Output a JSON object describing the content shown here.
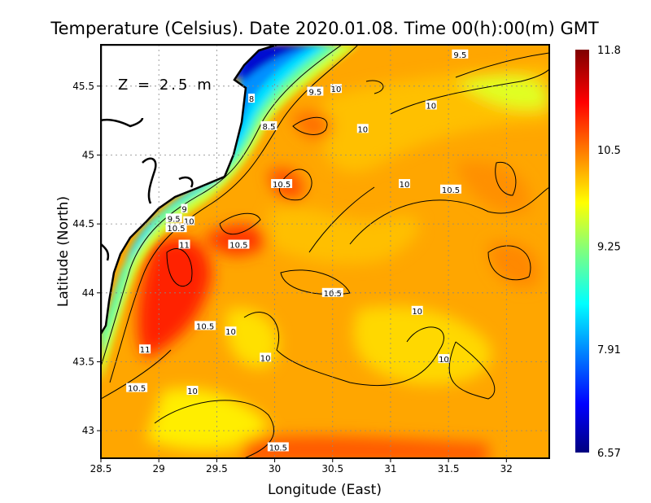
{
  "chart_data": {
    "type": "heatmap",
    "title": "Temperature (Celsius). Date 2020.01.08. Time 00(h):00(m)  GMT",
    "annotation": "Z = 2.5 m",
    "xlabel": "Longitude (East)",
    "ylabel": "Latitude (North)",
    "xlim": [
      28.5,
      32.37
    ],
    "ylim": [
      42.8,
      45.8
    ],
    "xticks": [
      "28.5",
      "29",
      "29.5",
      "30",
      "30.5",
      "31",
      "31.5",
      "32"
    ],
    "xtick_values": [
      28.5,
      29,
      29.5,
      30,
      30.5,
      31,
      31.5,
      32
    ],
    "yticks": [
      "43",
      "43.5",
      "44",
      "44.5",
      "45",
      "45.5"
    ],
    "ytick_values": [
      43,
      43.5,
      44,
      44.5,
      45,
      45.5
    ],
    "grid": true,
    "colorbar": {
      "min": 6.57,
      "max": 11.8,
      "ticks": [
        "11.8",
        "10.5",
        "9.25",
        "7.91",
        "6.57"
      ],
      "tick_values": [
        11.8,
        10.5,
        9.25,
        7.91,
        6.57
      ],
      "colormap": "jet",
      "placement": "right"
    },
    "contour_labels": [
      {
        "text": "9.5",
        "lon": 31.6,
        "lat": 45.73
      },
      {
        "text": "9.5",
        "lon": 30.35,
        "lat": 45.46
      },
      {
        "text": "10",
        "lon": 30.53,
        "lat": 45.48
      },
      {
        "text": "10",
        "lon": 31.35,
        "lat": 45.36
      },
      {
        "text": "8",
        "lon": 29.8,
        "lat": 45.41
      },
      {
        "text": "8.5",
        "lon": 29.95,
        "lat": 45.21
      },
      {
        "text": "10",
        "lon": 30.76,
        "lat": 45.19
      },
      {
        "text": "10.5",
        "lon": 30.06,
        "lat": 44.79
      },
      {
        "text": "10",
        "lon": 31.12,
        "lat": 44.79
      },
      {
        "text": "10.5",
        "lon": 31.52,
        "lat": 44.75
      },
      {
        "text": "9",
        "lon": 29.22,
        "lat": 44.61
      },
      {
        "text": "9.5",
        "lon": 29.13,
        "lat": 44.54
      },
      {
        "text": "10",
        "lon": 29.26,
        "lat": 44.52
      },
      {
        "text": "10.5",
        "lon": 29.15,
        "lat": 44.47
      },
      {
        "text": "11",
        "lon": 29.22,
        "lat": 44.35
      },
      {
        "text": "10.5",
        "lon": 29.69,
        "lat": 44.35
      },
      {
        "text": "10.5",
        "lon": 30.5,
        "lat": 44.0
      },
      {
        "text": "10",
        "lon": 31.23,
        "lat": 43.87
      },
      {
        "text": "10.5",
        "lon": 29.4,
        "lat": 43.76
      },
      {
        "text": "10",
        "lon": 29.62,
        "lat": 43.72
      },
      {
        "text": "11",
        "lon": 28.88,
        "lat": 43.59
      },
      {
        "text": "10",
        "lon": 29.92,
        "lat": 43.53
      },
      {
        "text": "10",
        "lon": 31.46,
        "lat": 43.52
      },
      {
        "text": "10.5",
        "lon": 28.81,
        "lat": 43.31
      },
      {
        "text": "10",
        "lon": 29.29,
        "lat": 43.29
      },
      {
        "text": "10.5",
        "lon": 30.03,
        "lat": 42.88
      }
    ]
  }
}
